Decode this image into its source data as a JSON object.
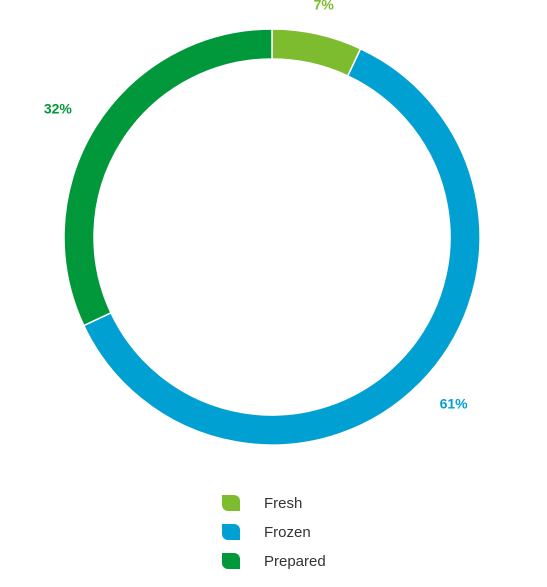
{
  "chart_data": {
    "type": "pie",
    "style": "donut",
    "title": "",
    "slices": [
      {
        "label": "Fresh",
        "value": 7,
        "value_label": "7%",
        "color": "#7dbb2f"
      },
      {
        "label": "Frozen",
        "value": 61,
        "value_label": "61%",
        "color": "#00a0d2"
      },
      {
        "label": "Prepared",
        "value": 32,
        "value_label": "32%",
        "color": "#00983a"
      }
    ],
    "start_angle": "12 o'clock",
    "direction": "clockwise",
    "legend_placement": "bottom-center"
  }
}
